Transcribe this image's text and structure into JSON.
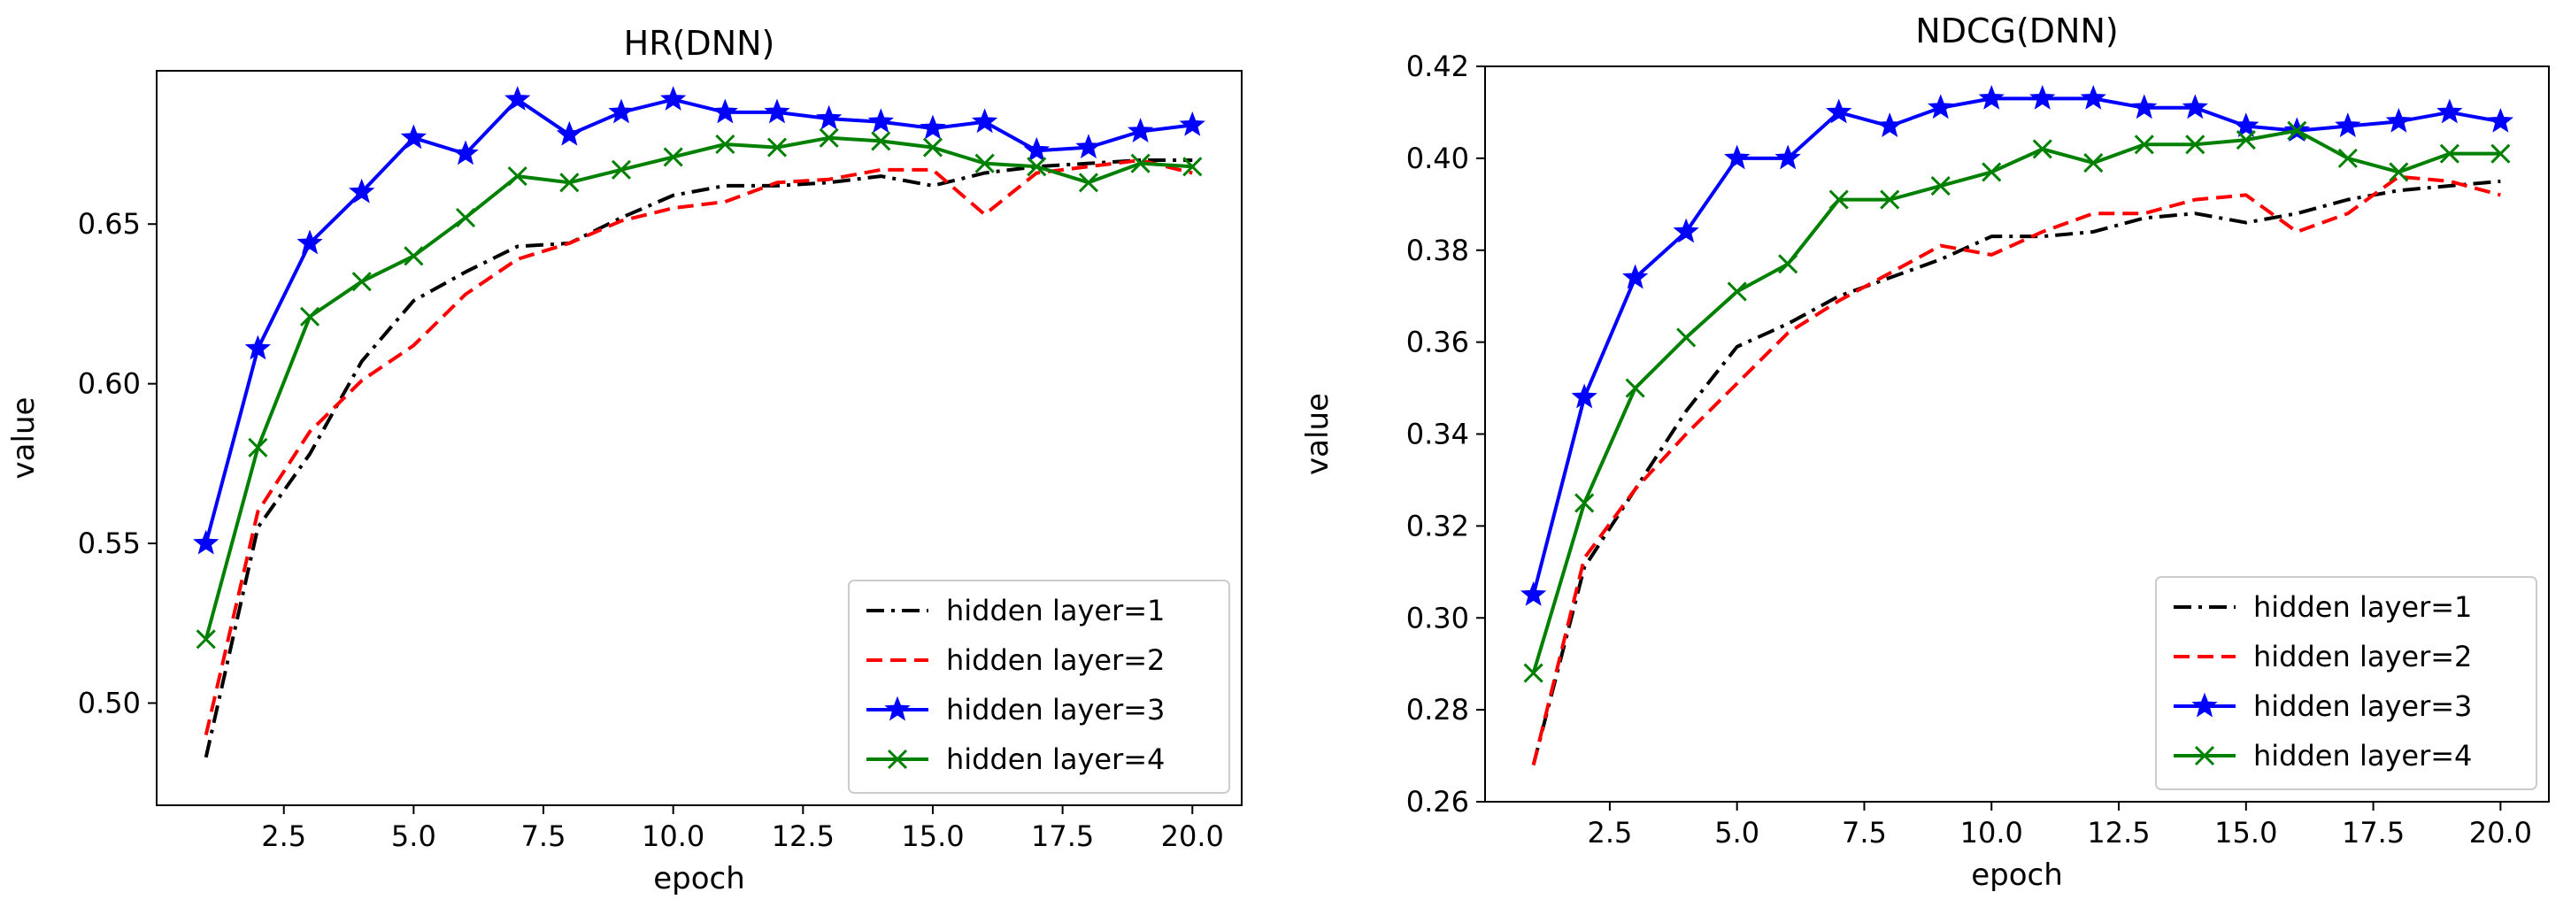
{
  "chart_data": [
    {
      "type": "line",
      "title": "HR(DNN)",
      "xlabel": "epoch",
      "ylabel": "value",
      "xlim": [
        0.05,
        20.95
      ],
      "ylim": [
        0.468,
        0.698
      ],
      "xticks": [
        2.5,
        5.0,
        7.5,
        10.0,
        12.5,
        15.0,
        17.5,
        20.0
      ],
      "xtick_labels": [
        "2.5",
        "5.0",
        "7.5",
        "10.0",
        "12.5",
        "15.0",
        "17.5",
        "20.0"
      ],
      "yticks": [
        0.5,
        0.55,
        0.6,
        0.65
      ],
      "ytick_labels": [
        "0.50",
        "0.55",
        "0.60",
        "0.65"
      ],
      "grid": false,
      "legend_position": "lower-right",
      "x": [
        1,
        2,
        3,
        4,
        5,
        6,
        7,
        8,
        9,
        10,
        11,
        12,
        13,
        14,
        15,
        16,
        17,
        18,
        19,
        20
      ],
      "series": [
        {
          "name": "hidden layer=1",
          "color": "#000000",
          "style": "dashdot",
          "marker": "none",
          "values": [
            0.483,
            0.555,
            0.578,
            0.607,
            0.626,
            0.635,
            0.643,
            0.644,
            0.652,
            0.659,
            0.662,
            0.662,
            0.663,
            0.665,
            0.662,
            0.666,
            0.668,
            0.669,
            0.67,
            0.67
          ]
        },
        {
          "name": "hidden layer=2",
          "color": "#ff0000",
          "style": "dashed",
          "marker": "none",
          "values": [
            0.49,
            0.56,
            0.585,
            0.601,
            0.612,
            0.628,
            0.639,
            0.644,
            0.651,
            0.655,
            0.657,
            0.663,
            0.664,
            0.667,
            0.667,
            0.653,
            0.666,
            0.668,
            0.67,
            0.666
          ]
        },
        {
          "name": "hidden layer=3",
          "color": "#0000ff",
          "style": "solid",
          "marker": "star",
          "values": [
            0.55,
            0.611,
            0.644,
            0.66,
            0.677,
            0.672,
            0.689,
            0.678,
            0.685,
            0.689,
            0.685,
            0.685,
            0.683,
            0.682,
            0.68,
            0.682,
            0.673,
            0.674,
            0.679,
            0.681
          ]
        },
        {
          "name": "hidden layer=4",
          "color": "#008000",
          "style": "solid",
          "marker": "x",
          "values": [
            0.52,
            0.58,
            0.621,
            0.632,
            0.64,
            0.652,
            0.665,
            0.663,
            0.667,
            0.671,
            0.675,
            0.674,
            0.677,
            0.676,
            0.674,
            0.669,
            0.668,
            0.663,
            0.669,
            0.668
          ]
        }
      ]
    },
    {
      "type": "line",
      "title": "NDCG(DNN)",
      "xlabel": "epoch",
      "ylabel": "value",
      "xlim": [
        0.05,
        20.95
      ],
      "ylim": [
        0.26,
        0.42
      ],
      "xticks": [
        2.5,
        5.0,
        7.5,
        10.0,
        12.5,
        15.0,
        17.5,
        20.0
      ],
      "xtick_labels": [
        "2.5",
        "5.0",
        "7.5",
        "10.0",
        "12.5",
        "15.0",
        "17.5",
        "20.0"
      ],
      "yticks": [
        0.26,
        0.28,
        0.3,
        0.32,
        0.34,
        0.36,
        0.38,
        0.4,
        0.42
      ],
      "ytick_labels": [
        "0.26",
        "0.28",
        "0.30",
        "0.32",
        "0.34",
        "0.36",
        "0.38",
        "0.40",
        "0.42"
      ],
      "grid": false,
      "legend_position": "lower-right",
      "x": [
        1,
        2,
        3,
        4,
        5,
        6,
        7,
        8,
        9,
        10,
        11,
        12,
        13,
        14,
        15,
        16,
        17,
        18,
        19,
        20
      ],
      "series": [
        {
          "name": "hidden layer=1",
          "color": "#000000",
          "style": "dashdot",
          "marker": "none",
          "values": [
            0.268,
            0.311,
            0.328,
            0.345,
            0.359,
            0.364,
            0.37,
            0.374,
            0.378,
            0.383,
            0.383,
            0.384,
            0.387,
            0.388,
            0.386,
            0.388,
            0.391,
            0.393,
            0.394,
            0.395
          ]
        },
        {
          "name": "hidden layer=2",
          "color": "#ff0000",
          "style": "dashed",
          "marker": "none",
          "values": [
            0.268,
            0.313,
            0.328,
            0.34,
            0.351,
            0.362,
            0.369,
            0.375,
            0.381,
            0.379,
            0.384,
            0.388,
            0.388,
            0.391,
            0.392,
            0.384,
            0.388,
            0.396,
            0.395,
            0.392
          ]
        },
        {
          "name": "hidden layer=3",
          "color": "#0000ff",
          "style": "solid",
          "marker": "star",
          "values": [
            0.305,
            0.348,
            0.374,
            0.384,
            0.4,
            0.4,
            0.41,
            0.407,
            0.411,
            0.413,
            0.413,
            0.413,
            0.411,
            0.411,
            0.407,
            0.406,
            0.407,
            0.408,
            0.41,
            0.408
          ]
        },
        {
          "name": "hidden layer=4",
          "color": "#008000",
          "style": "solid",
          "marker": "x",
          "values": [
            0.288,
            0.325,
            0.35,
            0.361,
            0.371,
            0.377,
            0.391,
            0.391,
            0.394,
            0.397,
            0.402,
            0.399,
            0.403,
            0.403,
            0.404,
            0.406,
            0.4,
            0.397,
            0.401,
            0.401
          ]
        }
      ]
    }
  ]
}
